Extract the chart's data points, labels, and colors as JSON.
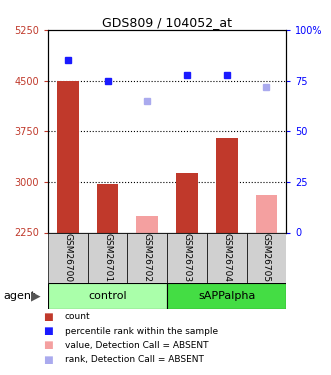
{
  "title": "GDS809 / 104052_at",
  "samples": [
    "GSM26700",
    "GSM26701",
    "GSM26702",
    "GSM26703",
    "GSM26704",
    "GSM26705"
  ],
  "bar_values": [
    4500,
    2975,
    2490,
    3125,
    3650,
    2800
  ],
  "bar_absent": [
    false,
    false,
    true,
    false,
    false,
    true
  ],
  "rank_values": [
    85,
    75,
    65,
    78,
    78,
    72
  ],
  "rank_absent": [
    false,
    false,
    true,
    false,
    false,
    true
  ],
  "ylim_left": [
    2250,
    5250
  ],
  "ylim_right": [
    0,
    100
  ],
  "yticks_left": [
    2250,
    3000,
    3750,
    4500,
    5250
  ],
  "yticks_right": [
    0,
    25,
    50,
    75,
    100
  ],
  "ytick_labels_right": [
    "0",
    "25",
    "50",
    "75",
    "100%"
  ],
  "bar_color_present": "#c0392b",
  "bar_color_absent": "#f4a0a0",
  "rank_color_present": "#1a1aff",
  "rank_color_absent": "#aaaaee",
  "dotted_line_values": [
    3000,
    3750,
    4500
  ],
  "group_labels": [
    "control",
    "sAPPalpha"
  ],
  "agent_label": "agent",
  "bg_group_control": "#aaffaa",
  "bg_group_sAPP": "#44dd44",
  "bg_xticklabel": "#d0d0d0",
  "bar_width": 0.55,
  "legend_items": [
    [
      "#c0392b",
      "count"
    ],
    [
      "#1a1aff",
      "percentile rank within the sample"
    ],
    [
      "#f4a0a0",
      "value, Detection Call = ABSENT"
    ],
    [
      "#aaaaee",
      "rank, Detection Call = ABSENT"
    ]
  ]
}
